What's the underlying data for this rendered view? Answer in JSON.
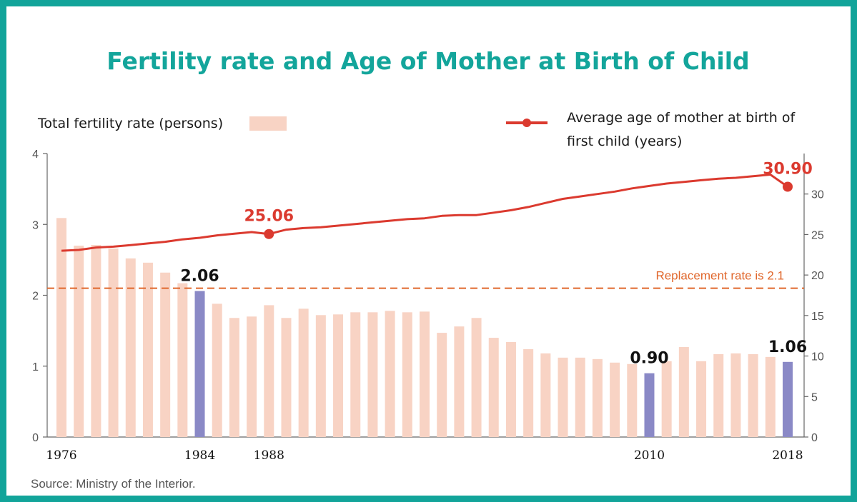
{
  "chart_data": {
    "type": "bar",
    "title": "Fertility rate and Age of Mother at Birth of Child",
    "x": [
      1976,
      1977,
      1978,
      1979,
      1980,
      1981,
      1982,
      1983,
      1984,
      1985,
      1986,
      1987,
      1988,
      1989,
      1990,
      1991,
      1992,
      1993,
      1994,
      1995,
      1996,
      1997,
      1998,
      1999,
      2000,
      2001,
      2002,
      2003,
      2004,
      2005,
      2006,
      2007,
      2008,
      2009,
      2010,
      2011,
      2012,
      2013,
      2014,
      2015,
      2016,
      2017,
      2018
    ],
    "x_tick_labels": [
      "1976",
      "1984",
      "1988",
      "2010",
      "2018"
    ],
    "series": [
      {
        "name": "Total fertility rate (persons)",
        "axis": "left",
        "color": "#f8d3c4",
        "highlight_color": "#8a89c6",
        "highlight_years": [
          1984,
          2010,
          2018
        ],
        "values": [
          3.09,
          2.7,
          2.71,
          2.66,
          2.52,
          2.46,
          2.32,
          2.17,
          2.06,
          1.88,
          1.68,
          1.7,
          1.86,
          1.68,
          1.81,
          1.72,
          1.73,
          1.76,
          1.76,
          1.78,
          1.76,
          1.77,
          1.47,
          1.56,
          1.68,
          1.4,
          1.34,
          1.24,
          1.18,
          1.12,
          1.12,
          1.1,
          1.05,
          1.03,
          0.9,
          1.07,
          1.27,
          1.07,
          1.17,
          1.18,
          1.17,
          1.13,
          1.06
        ]
      },
      {
        "name": "Average age of mother at birth of first child (years)",
        "axis": "right",
        "type": "line",
        "color": "#db3a2f",
        "values": [
          23.0,
          23.1,
          23.4,
          23.5,
          23.7,
          23.9,
          24.1,
          24.4,
          24.6,
          24.9,
          25.1,
          25.3,
          25.06,
          25.6,
          25.8,
          25.9,
          26.1,
          26.3,
          26.5,
          26.7,
          26.9,
          27.0,
          27.3,
          27.4,
          27.4,
          27.7,
          28.0,
          28.4,
          28.9,
          29.4,
          29.7,
          30.0,
          30.3,
          30.7,
          31.0,
          31.3,
          31.5,
          31.7,
          31.9,
          32.0,
          32.2,
          32.4,
          30.9
        ]
      }
    ],
    "y_left": {
      "ylim": [
        0,
        4
      ],
      "ticks": [
        "0",
        "1",
        "2",
        "3",
        "4"
      ]
    },
    "y_right": {
      "ylim": [
        0,
        35
      ],
      "ticks": [
        "0",
        "5",
        "10",
        "15",
        "20",
        "25",
        "30"
      ]
    },
    "reference_line": {
      "value": 2.1,
      "label": "Replacement rate is 2.1",
      "color": "#e0672c"
    },
    "bar_annotations": [
      {
        "year": 1984,
        "text": "2.06"
      },
      {
        "year": 2010,
        "text": "0.90"
      },
      {
        "year": 2018,
        "text": "1.06"
      }
    ],
    "line_annotations": [
      {
        "year": 1988,
        "text": "25.06"
      },
      {
        "year": 2018,
        "text": "30.90"
      }
    ],
    "legend": {
      "bar_label": "Total fertility rate (persons)",
      "line_label_1": "Average age of mother at birth of",
      "line_label_2": "first child (years)"
    },
    "source": "Source: Ministry of the Interior.",
    "grid": false
  },
  "colors": {
    "frame": "#12a49a",
    "title": "#13a59b"
  }
}
